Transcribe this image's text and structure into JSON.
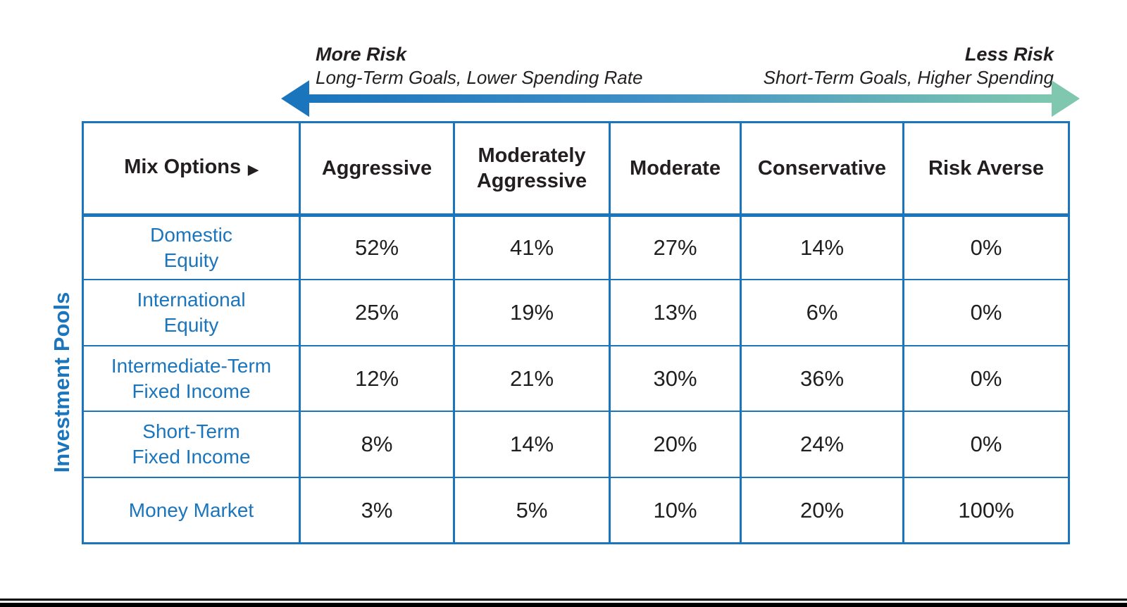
{
  "colors": {
    "table_border": "#1B75BC",
    "row_label_text": "#1B75BC",
    "header_text": "#231F20",
    "value_text": "#1F1F1F",
    "arrow_blue": "#1B75BC",
    "arrow_teal": "#7FC8AF",
    "bottom_bar": "#000000"
  },
  "risk_axis": {
    "left_title": "More Risk",
    "left_subtitle": "Long-Term Goals, Lower Spending Rate",
    "right_title": "Less Risk",
    "right_subtitle": "Short-Term Goals, Higher Spending"
  },
  "side_label": "Investment Pools",
  "table": {
    "corner_label": "Mix Options",
    "corner_arrow_glyph": "▶",
    "column_headers": [
      "Aggressive",
      "Moderately Aggressive",
      "Moderate",
      "Conservative",
      "Risk Averse"
    ],
    "rows": [
      {
        "label_line1": "Domestic",
        "label_line2": "Equity",
        "values": [
          "52%",
          "41%",
          "27%",
          "14%",
          "0%"
        ]
      },
      {
        "label_line1": "International",
        "label_line2": "Equity",
        "values": [
          "25%",
          "19%",
          "13%",
          "6%",
          "0%"
        ]
      },
      {
        "label_line1": "Intermediate-Term",
        "label_line2": "Fixed Income",
        "values": [
          "12%",
          "21%",
          "30%",
          "36%",
          "0%"
        ]
      },
      {
        "label_line1": "Short-Term",
        "label_line2": "Fixed Income",
        "values": [
          "8%",
          "14%",
          "20%",
          "24%",
          "0%"
        ]
      },
      {
        "label_line1": "Money Market",
        "label_line2": "",
        "values": [
          "3%",
          "5%",
          "10%",
          "20%",
          "100%"
        ]
      }
    ]
  },
  "chart_data": {
    "type": "table",
    "title": "Investment Pools Mix Options",
    "categories": [
      "Aggressive",
      "Moderately Aggressive",
      "Moderate",
      "Conservative",
      "Risk Averse"
    ],
    "series": [
      {
        "name": "Domestic Equity",
        "values": [
          52,
          41,
          27,
          14,
          0
        ]
      },
      {
        "name": "International Equity",
        "values": [
          25,
          19,
          13,
          6,
          0
        ]
      },
      {
        "name": "Intermediate-Term Fixed Income",
        "values": [
          12,
          21,
          30,
          36,
          0
        ]
      },
      {
        "name": "Short-Term Fixed Income",
        "values": [
          8,
          14,
          20,
          24,
          0
        ]
      },
      {
        "name": "Money Market",
        "values": [
          3,
          5,
          10,
          20,
          100
        ]
      }
    ],
    "unit": "%",
    "row_axis_label": "Investment Pools",
    "column_axis_label": "Mix Options",
    "risk_axis_left": "More Risk — Long-Term Goals, Lower Spending Rate",
    "risk_axis_right": "Less Risk — Short-Term Goals, Higher Spending"
  }
}
